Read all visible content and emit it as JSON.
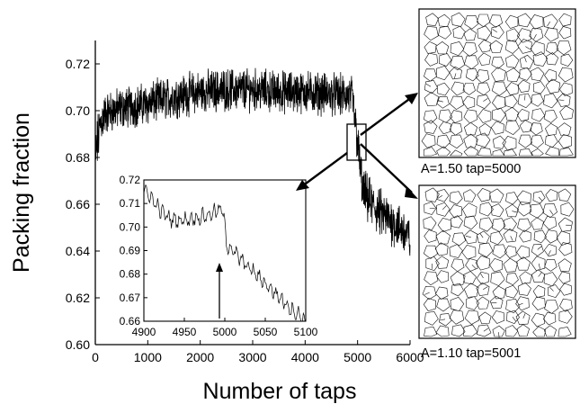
{
  "chart_data": [
    {
      "type": "line",
      "xlabel": "Number of taps",
      "ylabel": "Packing fraction",
      "xlim": [
        0,
        6000
      ],
      "ylim": [
        0.6,
        0.73
      ],
      "xticks": [
        "0",
        "1000",
        "2000",
        "3000",
        "4000",
        "5000",
        "6000"
      ],
      "yticks": [
        "0.60",
        "0.62",
        "0.64",
        "0.66",
        "0.68",
        "0.70",
        "0.72"
      ],
      "grid": false,
      "series": [
        {
          "color": "#000000",
          "x": [
            0,
            100,
            200,
            500,
            1000,
            1500,
            2000,
            2500,
            3000,
            3500,
            4000,
            4500,
            4900,
            5000,
            5100,
            5300,
            5500,
            5700,
            5900,
            6000
          ],
          "mean": [
            0.68,
            0.695,
            0.699,
            0.701,
            0.703,
            0.706,
            0.708,
            0.709,
            0.709,
            0.708,
            0.708,
            0.707,
            0.706,
            0.686,
            0.665,
            0.659,
            0.655,
            0.652,
            0.648,
            0.645
          ],
          "noise": [
            0.01,
            0.008,
            0.007,
            0.007,
            0.007,
            0.007,
            0.007,
            0.007,
            0.007,
            0.007,
            0.007,
            0.007,
            0.007,
            0.008,
            0.008,
            0.008,
            0.008,
            0.008,
            0.008,
            0.008
          ]
        }
      ]
    },
    {
      "type": "line",
      "xlim": [
        4900,
        5100
      ],
      "ylim": [
        0.66,
        0.72
      ],
      "xticks": [
        "4900",
        "4950",
        "5000",
        "5050",
        "5100"
      ],
      "yticks": [
        "0.66",
        "0.67",
        "0.68",
        "0.69",
        "0.70",
        "0.71",
        "0.72"
      ],
      "grid": false,
      "series": [
        {
          "color": "#000000",
          "x": [
            4900,
            4910,
            4920,
            4935,
            4950,
            4965,
            4980,
            4990,
            4998,
            5002,
            5010,
            5020,
            5035,
            5050,
            5065,
            5080,
            5090,
            5100
          ],
          "mean": [
            0.716,
            0.712,
            0.707,
            0.703,
            0.703,
            0.704,
            0.705,
            0.707,
            0.707,
            0.693,
            0.69,
            0.686,
            0.681,
            0.676,
            0.671,
            0.666,
            0.663,
            0.66
          ],
          "noise": [
            0.002,
            0.003,
            0.003,
            0.003,
            0.003,
            0.003,
            0.003,
            0.003,
            0.003,
            0.003,
            0.003,
            0.003,
            0.003,
            0.003,
            0.003,
            0.003,
            0.003,
            0.003
          ]
        }
      ]
    }
  ],
  "panels": {
    "top": {
      "caption": "A=1.50  tap=5000"
    },
    "bottom": {
      "caption": "A=1.10  tap=5001"
    }
  }
}
